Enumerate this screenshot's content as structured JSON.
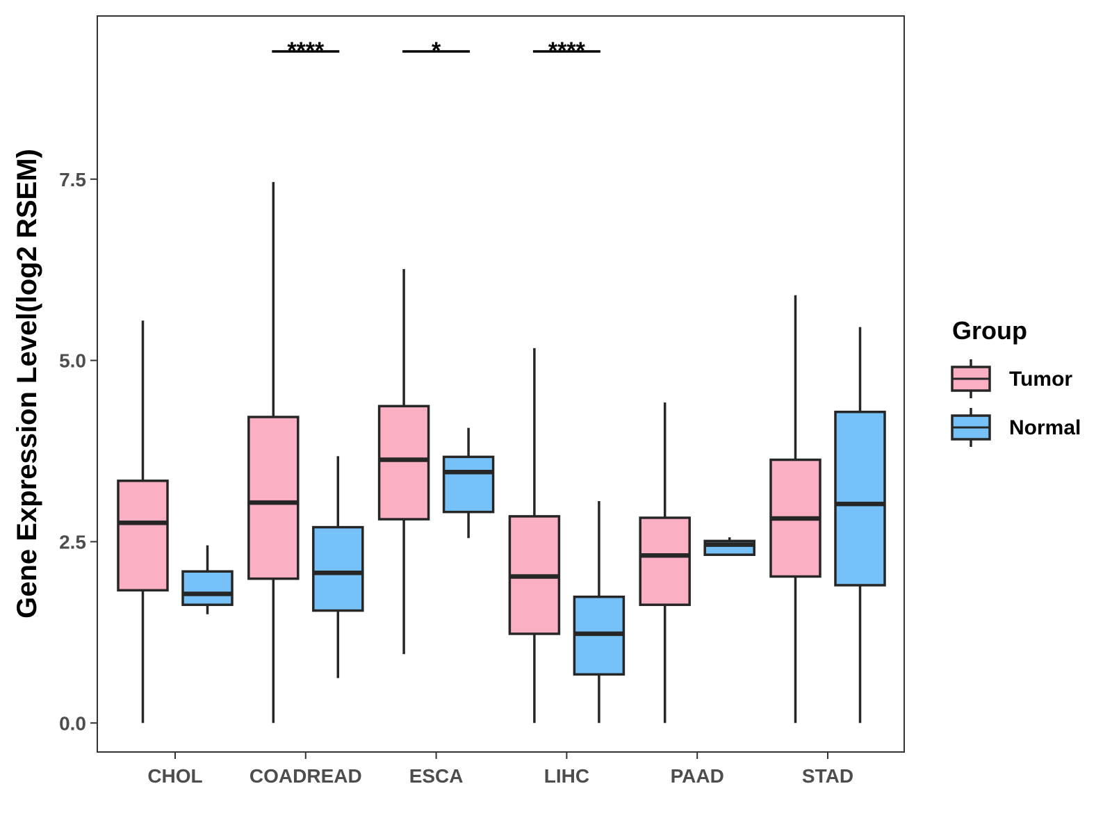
{
  "chart_data": {
    "type": "boxplot",
    "ylabel": "Gene Expression Level(log2 RSEM)",
    "xlabel": "",
    "ylim": [
      -0.4,
      9.75
    ],
    "yticks": [
      0.0,
      2.5,
      5.0,
      7.5
    ],
    "ytick_labels": [
      "0.0",
      "2.5",
      "5.0",
      "7.5"
    ],
    "categories": [
      "CHOL",
      "COADREAD",
      "ESCA",
      "LIHC",
      "PAAD",
      "STAD"
    ],
    "legend": {
      "title": "Group",
      "position": "right",
      "entries": [
        {
          "name": "Tumor",
          "color": "#FBAFC2"
        },
        {
          "name": "Normal",
          "color": "#76C1F8"
        }
      ]
    },
    "series": [
      {
        "name": "Tumor",
        "color": "#FBAFC2",
        "boxes": [
          {
            "category": "CHOL",
            "min": 0.0,
            "q1": 1.83,
            "median": 2.76,
            "q3": 3.34,
            "max": 5.55
          },
          {
            "category": "COADREAD",
            "min": 0.0,
            "q1": 1.99,
            "median": 3.04,
            "q3": 4.22,
            "max": 7.46
          },
          {
            "category": "ESCA",
            "min": 0.95,
            "q1": 2.81,
            "median": 3.63,
            "q3": 4.37,
            "max": 6.26
          },
          {
            "category": "LIHC",
            "min": 0.0,
            "q1": 1.23,
            "median": 2.02,
            "q3": 2.85,
            "max": 5.17
          },
          {
            "category": "PAAD",
            "min": 0.0,
            "q1": 1.63,
            "median": 2.31,
            "q3": 2.83,
            "max": 4.42
          },
          {
            "category": "STAD",
            "min": 0.0,
            "q1": 2.02,
            "median": 2.82,
            "q3": 3.63,
            "max": 5.9
          }
        ]
      },
      {
        "name": "Normal",
        "color": "#76C1F8",
        "boxes": [
          {
            "category": "CHOL",
            "min": 1.5,
            "q1": 1.63,
            "median": 1.78,
            "q3": 2.09,
            "max": 2.45
          },
          {
            "category": "COADREAD",
            "min": 0.62,
            "q1": 1.55,
            "median": 2.07,
            "q3": 2.7,
            "max": 3.68
          },
          {
            "category": "ESCA",
            "min": 2.55,
            "q1": 2.91,
            "median": 3.46,
            "q3": 3.67,
            "max": 4.07
          },
          {
            "category": "LIHC",
            "min": 0.0,
            "q1": 0.67,
            "median": 1.23,
            "q3": 1.74,
            "max": 3.06
          },
          {
            "category": "PAAD",
            "min": 2.32,
            "q1": 2.32,
            "median": 2.46,
            "q3": 2.51,
            "max": 2.56
          },
          {
            "category": "STAD",
            "min": 0.0,
            "q1": 1.9,
            "median": 3.02,
            "q3": 4.29,
            "max": 5.46
          }
        ]
      }
    ],
    "significance": [
      {
        "category": "COADREAD",
        "label": "****"
      },
      {
        "category": "ESCA",
        "label": "*"
      },
      {
        "category": "LIHC",
        "label": "****"
      }
    ]
  }
}
